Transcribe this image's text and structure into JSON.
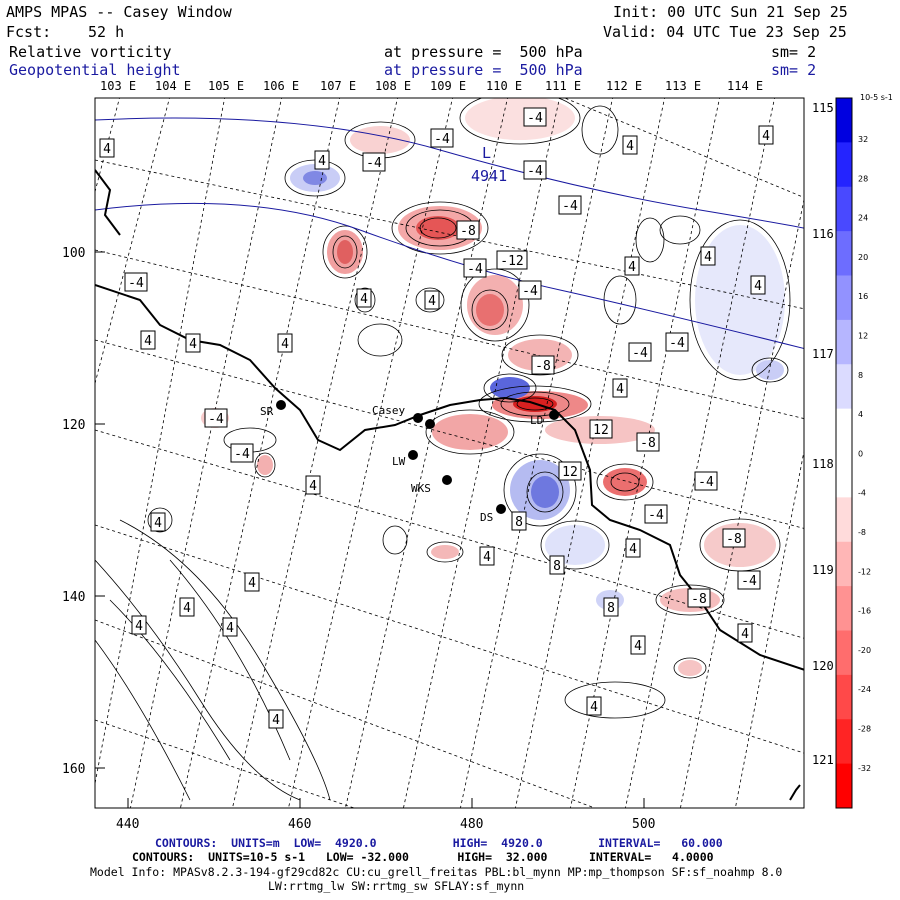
{
  "header": {
    "title": "AMPS MPAS -- Casey Window",
    "fcst_label": "Fcst:",
    "fcst_value": "52 h",
    "init": "Init: 00 UTC Sun 21 Sep 25",
    "valid": "Valid: 04 UTC Tue 23 Sep 25",
    "field1_name": "Relative vorticity",
    "field1_level": "at pressure =  500 hPa",
    "field1_sm": "sm= 2",
    "field2_name": "Geopotential height",
    "field2_level": "at pressure =  500 hPa",
    "field2_sm": "sm= 2"
  },
  "axes": {
    "top_lon_labels": [
      "103 E",
      "104 E",
      "105 E",
      "106 E",
      "107 E",
      "108 E",
      "109 E",
      "110 E",
      "111 E",
      "112 E",
      "113 E",
      "114 E"
    ],
    "right_lon_labels": [
      "115 E",
      "116 E",
      "117 E",
      "118 E",
      "119 E",
      "120 E",
      "121 E"
    ],
    "x_ticks": [
      "440",
      "460",
      "480",
      "500"
    ],
    "y_ticks": [
      "100",
      "120",
      "140",
      "160"
    ]
  },
  "colorbar": {
    "units": "10-5 s-1",
    "labels": [
      "32",
      "28",
      "24",
      "20",
      "16",
      "12",
      "8",
      "4",
      "0",
      "-4",
      "-8",
      "-12",
      "-16",
      "-20",
      "-24",
      "-28",
      "-32"
    ]
  },
  "stations": [
    {
      "name": "SR"
    },
    {
      "name": "Casey"
    },
    {
      "name": "LD"
    },
    {
      "name": "LW"
    },
    {
      "name": "WKS"
    },
    {
      "name": "DS"
    }
  ],
  "height_label": {
    "low": "L",
    "value": "4941"
  },
  "contour_labels": [
    "-4",
    "4",
    "-8",
    "8",
    "-12",
    "12"
  ],
  "footer": {
    "line1": "CONTOURS:  UNITS=m  LOW=  4920.0           HIGH=  4920.0        INTERVAL=   60.000",
    "line2": "CONTOURS:  UNITS=10-5 s-1   LOW= -32.000       HIGH=  32.000      INTERVAL=   4.0000",
    "line3": "Model Info: MPASv8.2.3-194-gf29cd82c CU:cu_grell_freitas PBL:bl_mynn MP:mp_thompson SF:sf_noahmp 8.0",
    "line4": "LW:rrtmg_lw SW:rrtmg_sw SFLAY:sf_mynn"
  },
  "colors": {
    "positive": "#2a3ad8",
    "negative": "#e02a2a",
    "height_contour": "#1a1aa0"
  }
}
